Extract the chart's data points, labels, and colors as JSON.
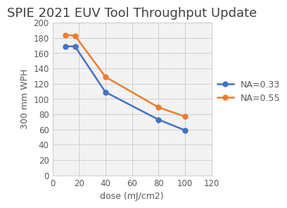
{
  "title": "SPIE 2021 EUV Tool Throughput Update",
  "xlabel": "dose (mJ/cm2)",
  "ylabel": "300 mm WPH",
  "series": [
    {
      "label": "NA=0.33",
      "color": "#4472C4",
      "x": [
        10,
        17,
        40,
        80,
        100
      ],
      "y": [
        169,
        169,
        109,
        73,
        59
      ]
    },
    {
      "label": "NA=0.55",
      "color": "#ED7D31",
      "x": [
        10,
        17,
        40,
        80,
        100
      ],
      "y": [
        184,
        183,
        129,
        89,
        77
      ]
    }
  ],
  "xlim": [
    0,
    120
  ],
  "ylim": [
    0,
    200
  ],
  "xticks": [
    0,
    20,
    40,
    60,
    80,
    100,
    120
  ],
  "yticks": [
    0,
    20,
    40,
    60,
    80,
    100,
    120,
    140,
    160,
    180,
    200
  ],
  "grid_color": "#C9C9C9",
  "plot_bg_color": "#F2F2F2",
  "fig_bg_color": "#FFFFFF",
  "title_color": "#404040",
  "axis_label_color": "#595959",
  "tick_label_color": "#595959",
  "title_fontsize": 13,
  "axis_label_fontsize": 9,
  "tick_fontsize": 8.5,
  "legend_fontsize": 9,
  "marker": "o",
  "markersize": 5,
  "linewidth": 1.8
}
